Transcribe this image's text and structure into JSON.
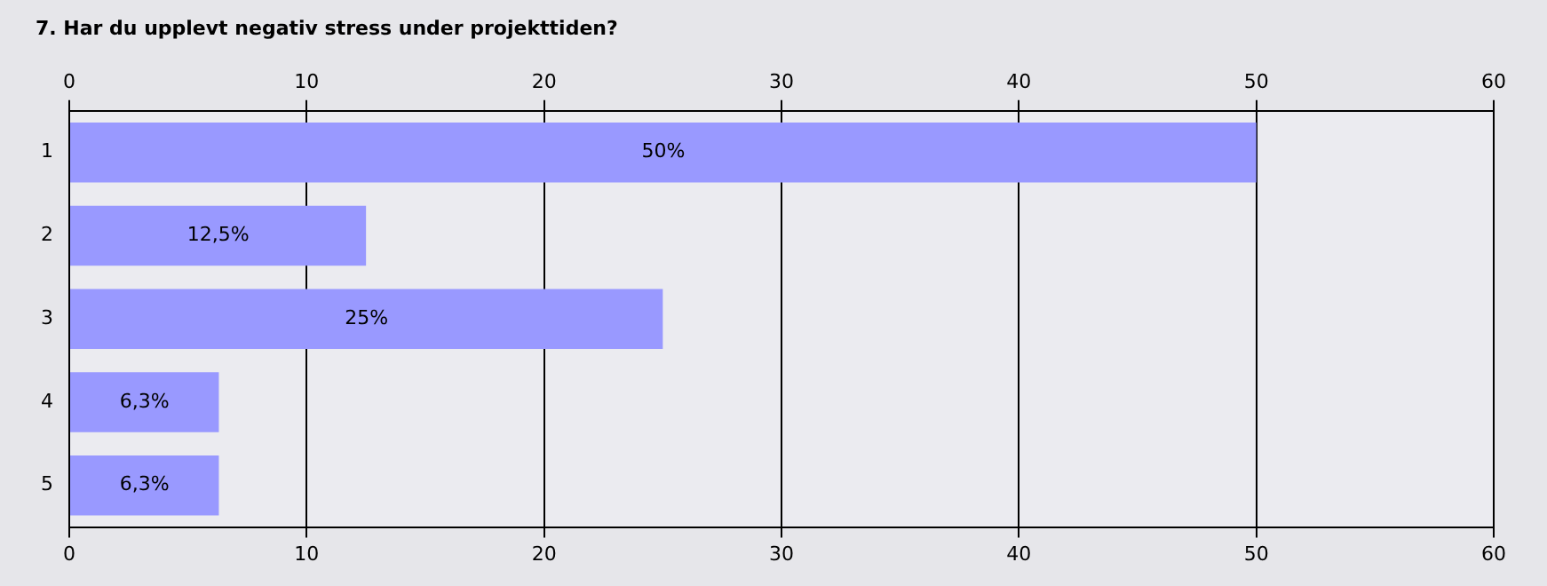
{
  "chart_data": {
    "type": "bar",
    "orientation": "horizontal",
    "title": "7. Har du upplevt negativ stress under projekttiden?",
    "categories": [
      "1",
      "2",
      "3",
      "4",
      "5"
    ],
    "values": [
      50,
      12.5,
      25,
      6.3,
      6.3
    ],
    "value_labels": [
      "50%",
      "12,5%",
      "25%",
      "6,3%",
      "6,3%"
    ],
    "color": "#9999ff",
    "xlim": [
      0,
      60
    ],
    "xticks": [
      0,
      10,
      20,
      30,
      40,
      50,
      60
    ],
    "x2lim": [
      0,
      60
    ],
    "x2ticks": [
      0,
      10,
      20,
      30,
      40,
      50,
      60
    ],
    "grid": "x"
  }
}
